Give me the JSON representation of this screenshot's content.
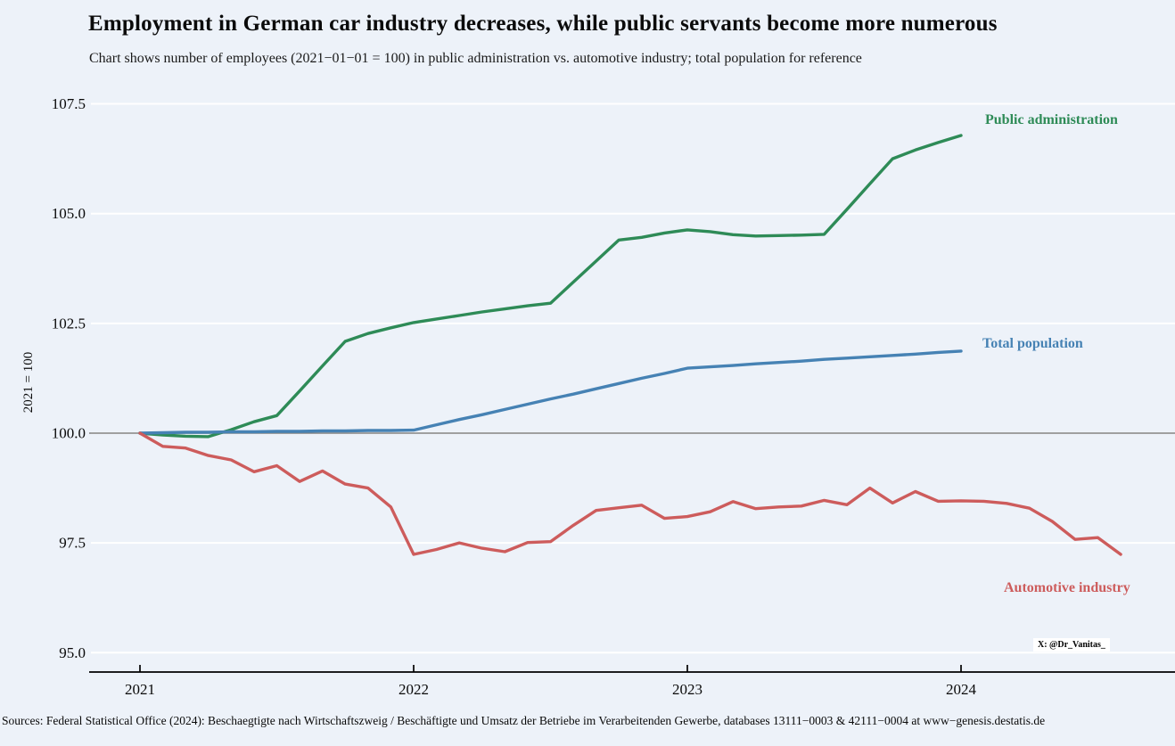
{
  "title": "Employment in German car industry decreases, while public servants become more numerous",
  "subtitle": "Chart shows number of employees (2021−01−01 = 100) in public administration vs. automotive industry; total population for reference",
  "footer": "Sources: Federal Statistical Office (2024): Beschaegtigte nach Wirtschaftszweig / Beschäftigte und Umsatz der Betriebe im Verarbeitenden Gewerbe, databases 13111−0003 & 42111−0004 at www−genesis.destatis.de",
  "watermark": "X: @Dr_Vanitas_",
  "colors": {
    "background": "#edf2f9",
    "gridline": "#ffffff",
    "reference_line": "#808080",
    "axis": "#000000",
    "public_administration": "#2e8b57",
    "total_population": "#4682b4",
    "automotive_industry": "#cd5c5c"
  },
  "chart_data": {
    "type": "line",
    "title": "Employment in German car industry decreases, while public servants become more numerous",
    "xlabel": "",
    "ylabel": "2021 = 100",
    "x_unit": "months since 2021-01",
    "ylim": [
      94.5,
      108.0
    ],
    "grid": "horizontal-white",
    "reference_line_y": 100.0,
    "legend_position": "inline-right-labels",
    "y_ticks": [
      {
        "value": 95.0,
        "label": "95.0"
      },
      {
        "value": 97.5,
        "label": "97.5"
      },
      {
        "value": 100.0,
        "label": "100.0"
      },
      {
        "value": 102.5,
        "label": "102.5"
      },
      {
        "value": 105.0,
        "label": "105.0"
      },
      {
        "value": 107.5,
        "label": "107.5"
      }
    ],
    "x_ticks": [
      {
        "month": 0,
        "label": "2021"
      },
      {
        "month": 12,
        "label": "2022"
      },
      {
        "month": 24,
        "label": "2023"
      },
      {
        "month": 36,
        "label": "2024"
      }
    ],
    "series": [
      {
        "name": "Public administration",
        "color": "#2e8b57",
        "start_month": 0,
        "values": [
          100.0,
          99.96,
          99.93,
          99.92,
          100.08,
          100.26,
          100.4,
          100.96,
          101.53,
          102.09,
          102.27,
          102.4,
          102.52,
          102.6,
          102.68,
          102.76,
          102.83,
          102.9,
          102.96,
          103.44,
          103.92,
          104.4,
          104.46,
          104.56,
          104.63,
          104.59,
          104.52,
          104.49,
          104.5,
          104.51,
          104.53,
          105.1,
          105.68,
          106.25,
          106.45,
          106.62,
          106.78
        ]
      },
      {
        "name": "Total population",
        "color": "#4682b4",
        "start_month": 0,
        "values": [
          100.0,
          100.01,
          100.02,
          100.02,
          100.03,
          100.03,
          100.04,
          100.04,
          100.05,
          100.05,
          100.06,
          100.06,
          100.07,
          100.19,
          100.31,
          100.42,
          100.54,
          100.66,
          100.78,
          100.89,
          101.01,
          101.13,
          101.25,
          101.36,
          101.48,
          101.51,
          101.54,
          101.58,
          101.61,
          101.64,
          101.68,
          101.71,
          101.74,
          101.77,
          101.8,
          101.84,
          101.87
        ]
      },
      {
        "name": "Automotive industry",
        "color": "#cd5c5c",
        "start_month": 0,
        "values": [
          100.0,
          99.7,
          99.66,
          99.49,
          99.39,
          99.12,
          99.26,
          98.9,
          99.14,
          98.84,
          98.75,
          98.32,
          97.24,
          97.35,
          97.5,
          97.38,
          97.3,
          97.51,
          97.53,
          97.9,
          98.24,
          98.3,
          98.36,
          98.06,
          98.1,
          98.21,
          98.44,
          98.28,
          98.32,
          98.34,
          98.47,
          98.37,
          98.75,
          98.41,
          98.67,
          98.45,
          98.46,
          98.45,
          98.4,
          98.29,
          97.99,
          97.58,
          97.62,
          97.24
        ]
      }
    ]
  }
}
